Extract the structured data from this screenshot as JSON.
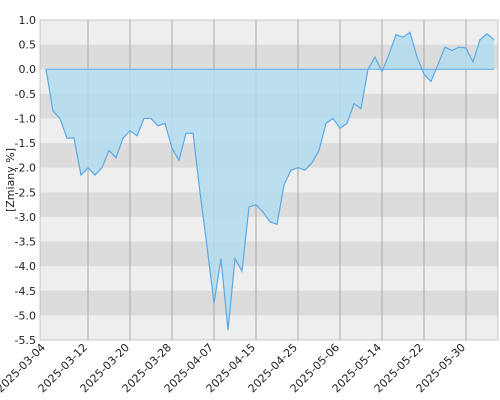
{
  "chart_data": {
    "type": "area",
    "y_label": "[Zmiany %]",
    "categories": [
      "2025-03-04",
      null,
      null,
      null,
      null,
      null,
      "2025-03-12",
      null,
      null,
      null,
      null,
      null,
      "2025-03-20",
      null,
      null,
      null,
      null,
      null,
      "2025-03-28",
      null,
      null,
      null,
      null,
      null,
      "2025-04-07",
      null,
      null,
      null,
      null,
      null,
      "2025-04-15",
      null,
      null,
      null,
      null,
      null,
      "2025-04-25",
      null,
      null,
      null,
      null,
      null,
      "2025-05-06",
      null,
      null,
      null,
      null,
      null,
      "2025-05-14",
      null,
      null,
      null,
      null,
      null,
      "2025-05-22",
      null,
      null,
      null,
      null,
      null,
      "2025-05-30",
      null,
      null,
      null,
      null
    ],
    "values": [
      0.0,
      -0.85,
      -1.0,
      -1.4,
      -1.4,
      -2.15,
      -2.0,
      -2.15,
      -2.0,
      -1.65,
      -1.8,
      -1.4,
      -1.25,
      -1.35,
      -1.0,
      -1.0,
      -1.15,
      -1.1,
      -1.6,
      -1.85,
      -1.3,
      -1.3,
      -2.5,
      -3.6,
      -4.75,
      -3.85,
      -5.3,
      -3.85,
      -4.1,
      -2.8,
      -2.75,
      -2.9,
      -3.1,
      -3.15,
      -2.35,
      -2.05,
      -2.0,
      -2.05,
      -1.9,
      -1.65,
      -1.1,
      -1.0,
      -1.2,
      -1.1,
      -0.7,
      -0.8,
      0.0,
      0.25,
      -0.05,
      0.3,
      0.7,
      0.65,
      0.75,
      0.25,
      -0.1,
      -0.25,
      0.1,
      0.45,
      0.38,
      0.45,
      0.43,
      0.15,
      0.6,
      0.72,
      0.6
    ],
    "color": "#5aa9e6",
    "fill_color": "#b3dcee",
    "ylim": [
      -5.5,
      1.0
    ],
    "yticks": [
      {
        "value": -5.5,
        "label": "-5.5"
      },
      {
        "value": -5.0,
        "label": "-5.0"
      },
      {
        "value": -4.5,
        "label": "-4.5"
      },
      {
        "value": -4.0,
        "label": "-4.0"
      },
      {
        "value": -3.5,
        "label": "-3.5"
      },
      {
        "value": -3.0,
        "label": "-3.0"
      },
      {
        "value": -2.5,
        "label": "-2.5"
      },
      {
        "value": -2.0,
        "label": "-2.0"
      },
      {
        "value": -1.5,
        "label": "-1.5"
      },
      {
        "value": -1.0,
        "label": "-1.0"
      },
      {
        "value": -0.5,
        "label": "-0.5"
      },
      {
        "value": 0.0,
        "label": "0.0"
      },
      {
        "value": 0.5,
        "label": "0.5"
      },
      {
        "value": 1.0,
        "label": "1.0"
      }
    ],
    "grid": true
  }
}
